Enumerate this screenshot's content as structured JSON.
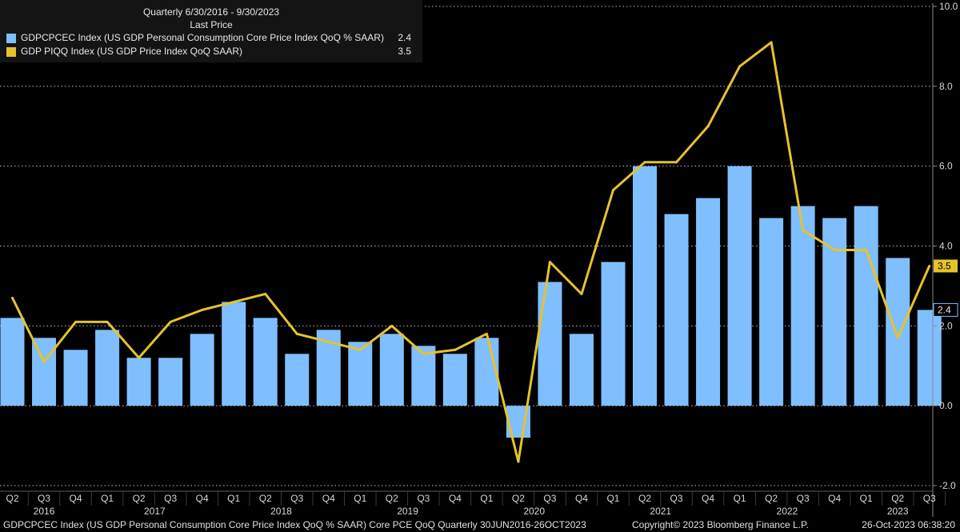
{
  "legend": {
    "title": "Quarterly 6/30/2016 - 9/30/2023",
    "subtitle": "Last Price",
    "items": [
      {
        "name": "GDPCPCEC Index (US GDP Personal Consumption Core Price Index QoQ % SAAR)",
        "value": "2.4",
        "color": "#7fbfff"
      },
      {
        "name": "GDP PIQQ Index (US GDP Price Index QoQ SAAR)",
        "value": "3.5",
        "color": "#e6c22e"
      }
    ]
  },
  "footer": {
    "left": "GDPCPCEC Index (US GDP Personal Consumption Core Price Index QoQ % SAAR) Core PCE QoQ  Quarterly 30JUN2016-26OCT2023",
    "center": "Copyright© 2023 Bloomberg Finance L.P.",
    "right": "26-Oct-2023 06:38:20"
  },
  "chart_data": {
    "type": "bar",
    "x_quarters": [
      "Q2",
      "Q3",
      "Q4",
      "Q1",
      "Q2",
      "Q3",
      "Q4",
      "Q1",
      "Q2",
      "Q3",
      "Q4",
      "Q1",
      "Q2",
      "Q3",
      "Q4",
      "Q1",
      "Q2",
      "Q3",
      "Q4",
      "Q1",
      "Q2",
      "Q3",
      "Q4",
      "Q1",
      "Q2",
      "Q3",
      "Q4",
      "Q1",
      "Q2",
      "Q3"
    ],
    "x_years": [
      {
        "label": "2016",
        "start": 0,
        "end": 2
      },
      {
        "label": "2017",
        "start": 3,
        "end": 6
      },
      {
        "label": "2018",
        "start": 7,
        "end": 10
      },
      {
        "label": "2019",
        "start": 11,
        "end": 14
      },
      {
        "label": "2020",
        "start": 15,
        "end": 18
      },
      {
        "label": "2021",
        "start": 19,
        "end": 22
      },
      {
        "label": "2022",
        "start": 23,
        "end": 26
      },
      {
        "label": "2023",
        "start": 27,
        "end": 29
      }
    ],
    "y_ticks": [
      "-2.0",
      "0.0",
      "2.0",
      "4.0",
      "6.0",
      "8.0",
      "10.0"
    ],
    "ylim": [
      -2.5,
      10
    ],
    "gridlines": [
      -2,
      0,
      2,
      4,
      6,
      8,
      10
    ],
    "series": [
      {
        "name": "GDPCPCEC Index (US GDP Personal Consumption Core Price Index QoQ % SAAR)",
        "type": "bar",
        "color": "#7fbfff",
        "values": [
          2.2,
          1.7,
          1.4,
          1.9,
          1.2,
          1.2,
          1.8,
          2.6,
          2.2,
          1.3,
          1.9,
          1.6,
          1.8,
          1.5,
          1.3,
          1.7,
          -0.8,
          3.1,
          1.8,
          3.6,
          6.0,
          4.8,
          5.2,
          6.0,
          4.7,
          5.0,
          4.7,
          5.0,
          3.7,
          2.4
        ],
        "last_label": "2.4"
      },
      {
        "name": "GDP PIQQ Index (US GDP Price Index QoQ SAAR)",
        "type": "line",
        "color": "#e6c22e",
        "values": [
          2.7,
          1.1,
          2.1,
          2.1,
          1.2,
          2.1,
          2.4,
          2.6,
          2.8,
          1.8,
          1.6,
          1.4,
          2.0,
          1.3,
          1.4,
          1.8,
          -1.4,
          3.6,
          2.8,
          5.4,
          6.1,
          6.1,
          7.0,
          8.5,
          9.1,
          4.4,
          3.9,
          3.9,
          1.7,
          3.5
        ],
        "last_label": "3.5"
      }
    ]
  }
}
